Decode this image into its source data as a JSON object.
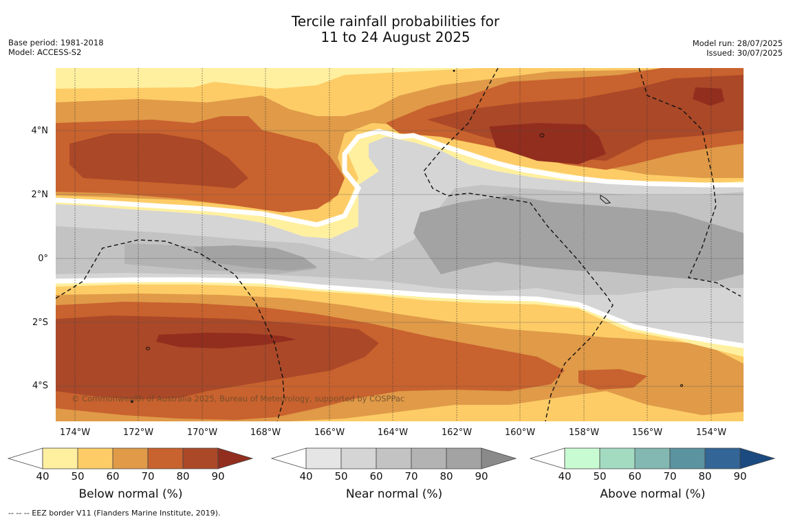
{
  "header": {
    "title_line1": "Tercile rainfall probabilities for",
    "title_line2": "11 to 24 August 2025",
    "base_period": "Base period: 1981-2018",
    "model": "Model: ACCESS-S2",
    "model_run": "Model run: 28/07/2025",
    "issued": "Issued: 30/07/2025"
  },
  "map": {
    "copyright": "© Commonwealth of Australia 2025, Bureau of Meteorology, supported by COSPPac",
    "lat_labels": [
      "4°N",
      "2°N",
      "0°",
      "2°S",
      "4°S"
    ],
    "lon_labels": [
      "174°W",
      "172°W",
      "170°W",
      "168°W",
      "166°W",
      "164°W",
      "162°W",
      "160°W",
      "158°W",
      "156°W",
      "154°W"
    ],
    "colors": {
      "below": [
        "#fff0a0",
        "#fdcc66",
        "#e09a48",
        "#c8622e",
        "#aa4828",
        "#922e1e"
      ],
      "near": [
        "#e5e5e5",
        "#d5d5d5",
        "#c3c3c3",
        "#b3b3b3",
        "#a3a3a3",
        "#8a8a8a"
      ],
      "above": [
        "#c9fbd2",
        "#a3dbc1",
        "#82b8b1",
        "#5b93a0",
        "#336696",
        "#1a4a80"
      ]
    }
  },
  "legend": {
    "below": {
      "label": "Below normal (%)",
      "ticks": [
        "40",
        "50",
        "60",
        "70",
        "80",
        "90"
      ]
    },
    "near": {
      "label": "Near normal (%)",
      "ticks": [
        "40",
        "50",
        "60",
        "70",
        "80",
        "90"
      ]
    },
    "above": {
      "label": "Above normal (%)",
      "ticks": [
        "40",
        "50",
        "60",
        "70",
        "80",
        "90"
      ]
    }
  },
  "footer": {
    "eez_note": "--  --  -- EEZ border V11 (Flanders Marine Institute, 2019)."
  }
}
